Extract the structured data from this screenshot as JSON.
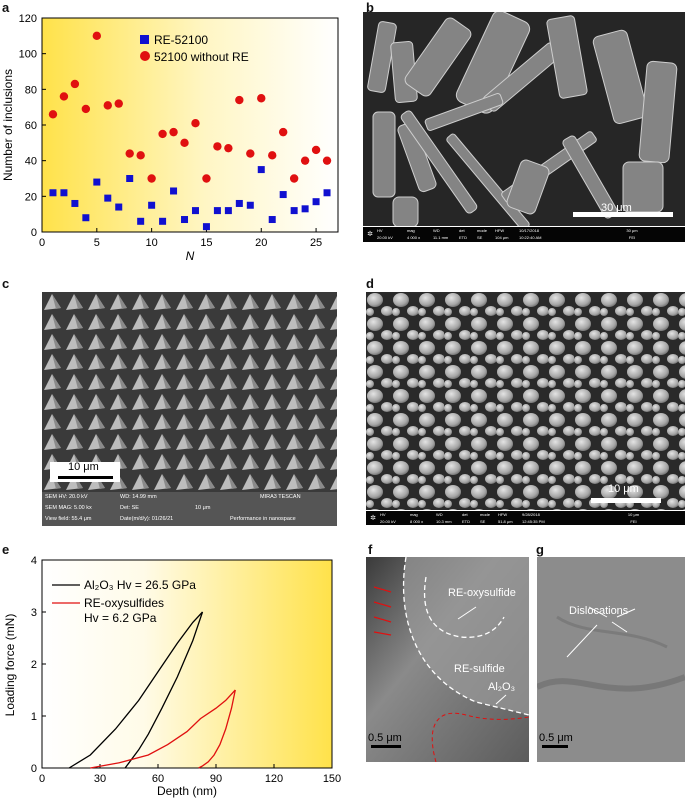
{
  "panels": {
    "a": "a",
    "b": "b",
    "c": "c",
    "d": "d",
    "e": "e",
    "f": "f",
    "g": "g"
  },
  "colors": {
    "re52100": "#1010d0",
    "without_re": "#e01010",
    "al2o3": "#000000",
    "re_oxy": "#e01010",
    "gradient_start": "#ffe24a",
    "gradient_end": "#ffffff"
  },
  "chart_data": [
    {
      "type": "scatter",
      "panel": "a",
      "xlabel": "N",
      "ylabel": "Number of inclusions",
      "xlim": [
        0,
        27
      ],
      "ylim": [
        0,
        120
      ],
      "xticks": [
        0,
        5,
        10,
        15,
        20,
        25
      ],
      "yticks": [
        0,
        20,
        40,
        60,
        80,
        100,
        120
      ],
      "legend_position": "top-center",
      "series": [
        {
          "name": "RE-52100",
          "marker": "square",
          "color": "#1010d0",
          "x": [
            1,
            2,
            3,
            4,
            5,
            6,
            7,
            8,
            9,
            10,
            11,
            12,
            13,
            14,
            15,
            16,
            17,
            18,
            19,
            20,
            21,
            22,
            23,
            24,
            25,
            26
          ],
          "y": [
            22,
            22,
            16,
            8,
            28,
            19,
            14,
            30,
            6,
            15,
            6,
            23,
            7,
            12,
            3,
            12,
            12,
            16,
            15,
            35,
            7,
            21,
            12,
            13,
            17,
            22
          ]
        },
        {
          "name": "52100 without RE",
          "marker": "circle",
          "color": "#e01010",
          "x": [
            1,
            2,
            3,
            4,
            5,
            6,
            7,
            8,
            9,
            10,
            11,
            12,
            13,
            14,
            15,
            16,
            17,
            18,
            19,
            20,
            21,
            22,
            23,
            24,
            25,
            26
          ],
          "y": [
            66,
            76,
            83,
            69,
            110,
            71,
            72,
            44,
            43,
            30,
            55,
            56,
            50,
            61,
            30,
            48,
            47,
            74,
            44,
            75,
            43,
            56,
            30,
            40,
            46,
            40
          ]
        }
      ]
    },
    {
      "type": "line",
      "panel": "e",
      "xlabel": "Depth (nm)",
      "ylabel": "Loading force (mN)",
      "xlim": [
        0,
        150
      ],
      "ylim": [
        0,
        4
      ],
      "xticks": [
        0,
        30,
        60,
        90,
        120,
        150
      ],
      "yticks": [
        0,
        1,
        2,
        3,
        4
      ],
      "legend_position": "top-left",
      "series": [
        {
          "name": "Al2O3 Hv = 26.5 GPa",
          "color": "#000000",
          "loading": {
            "x": [
              14,
              25,
              38,
              50,
              60,
              70,
              78,
              83
            ],
            "y": [
              0,
              0.25,
              0.75,
              1.3,
              1.85,
              2.4,
              2.8,
              3.0
            ]
          },
          "unloading": {
            "x": [
              83,
              78,
              70,
              62,
              55,
              50,
              45,
              43
            ],
            "y": [
              3.0,
              2.45,
              1.75,
              1.15,
              0.65,
              0.35,
              0.1,
              0
            ]
          }
        },
        {
          "name": "RE-oxysulfides Hv = 6.2 GPa",
          "color": "#e01010",
          "loading": {
            "x": [
              25,
              40,
              55,
              65,
              75,
              82,
              90,
              95,
              100
            ],
            "y": [
              0,
              0.1,
              0.25,
              0.45,
              0.7,
              0.95,
              1.15,
              1.3,
              1.5
            ]
          },
          "unloading": {
            "x": [
              100,
              98,
              95,
              92,
              89,
              86,
              83,
              81
            ],
            "y": [
              1.5,
              1.15,
              0.75,
              0.45,
              0.25,
              0.12,
              0.04,
              0
            ]
          }
        }
      ]
    }
  ],
  "legend_a": {
    "item1": "RE-52100",
    "item2": "52100 without RE"
  },
  "legend_e": {
    "item1": "Al₂O₃ Hv = 26.5 GPa",
    "item2_line1": "RE-oxysulfides",
    "item2_line2": "Hv = 6.2 GPa"
  },
  "axes_a": {
    "xlabel": "N",
    "ylabel": "Number of inclusions"
  },
  "axes_e": {
    "xlabel": "Depth (nm)",
    "ylabel": "Loading force (mN)"
  },
  "sem_b": {
    "scalebar": "30 μm",
    "info_headers": [
      "HV",
      "mag",
      "WD",
      "det",
      "mode",
      "HFW",
      "10/17/2018",
      ""
    ],
    "info_values": [
      "20.00 kV",
      "4 000 x",
      "11.1 mm",
      "ETD",
      "SE",
      "104 μm",
      "10:22:40 AM",
      "FEI"
    ],
    "info_scale": "30 μm"
  },
  "sem_c": {
    "scalebar": "10 μm",
    "row1": [
      "SEM HV: 20.0 kV",
      "WD: 14.99 mm",
      "MIRA3 TESCAN"
    ],
    "row2": [
      "SEM MAG: 5.00 kx",
      "Det: SE",
      "10 μm"
    ],
    "row3": [
      "View field: 55.4 μm",
      "Date(m/d/y): 01/26/21",
      "Performance in nanospace"
    ]
  },
  "sem_d": {
    "scalebar": "10 μm",
    "info_headers": [
      "HV",
      "mag",
      "WD",
      "det",
      "mode",
      "HFW",
      "9/28/2018",
      ""
    ],
    "info_values": [
      "20.00 kV",
      "8 000 x",
      "10.3 mm",
      "ETD",
      "SE",
      "51.8 μm",
      "12:45:35 PM",
      "FEI"
    ],
    "info_scale": "10 μm"
  },
  "tem_f": {
    "label1": "RE-oxysulfide",
    "label2": "RE-sulfide",
    "label3": "Al₂O₃",
    "scalebar": "0.5 μm"
  },
  "tem_g": {
    "label1": "Dislocations",
    "scalebar": "0.5 μm"
  }
}
